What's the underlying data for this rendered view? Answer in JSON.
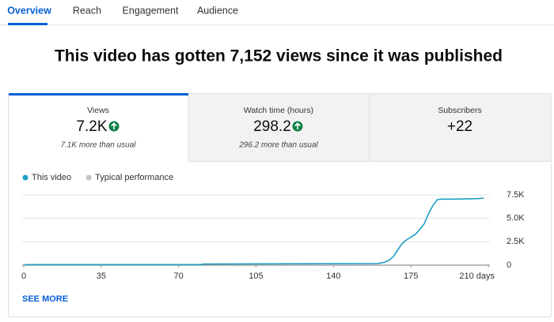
{
  "tabs": [
    "Overview",
    "Reach",
    "Engagement",
    "Audience"
  ],
  "headline": "This video has gotten 7,152 views since it was published",
  "cards": [
    {
      "label": "Views",
      "value": "7.2K",
      "note": "7.1K more than usual"
    },
    {
      "label": "Watch time (hours)",
      "value": "298.2",
      "note": "296.2 more than usual"
    },
    {
      "label": "Subscribers",
      "value": "+22"
    }
  ],
  "see_more": "SEE MORE",
  "chart_data": {
    "type": "line",
    "x": [
      0,
      1,
      80,
      81,
      160,
      163,
      165,
      167,
      169,
      171,
      173,
      175,
      177,
      179,
      181,
      183,
      185,
      187,
      189,
      195,
      205,
      208
    ],
    "series": [
      {
        "name": "This video",
        "color": "#1f9fc4",
        "values": [
          0,
          60,
          60,
          120,
          180,
          300,
          500,
          900,
          1600,
          2300,
          2700,
          3000,
          3300,
          3800,
          4400,
          5500,
          6400,
          7000,
          7050,
          7050,
          7100,
          7152
        ]
      },
      {
        "name": "Typical performance",
        "color": "#c4c4c4",
        "values": [
          null,
          null,
          null,
          null,
          null,
          null,
          null,
          null,
          null,
          null,
          null,
          null,
          null,
          null,
          null,
          null,
          null,
          null,
          null,
          null,
          null,
          null
        ]
      }
    ],
    "xlim": [
      0,
      210
    ],
    "xticks": [
      0,
      35,
      70,
      105,
      140,
      175,
      {
        "value": 210,
        "label": "210 days"
      }
    ],
    "ylim": [
      0,
      7500
    ],
    "yticks": [
      0,
      {
        "value": 2500,
        "label": "2.5K"
      },
      {
        "value": 5000,
        "label": "5.0K"
      },
      {
        "value": 7500,
        "label": "7.5K"
      }
    ],
    "grid": true
  }
}
